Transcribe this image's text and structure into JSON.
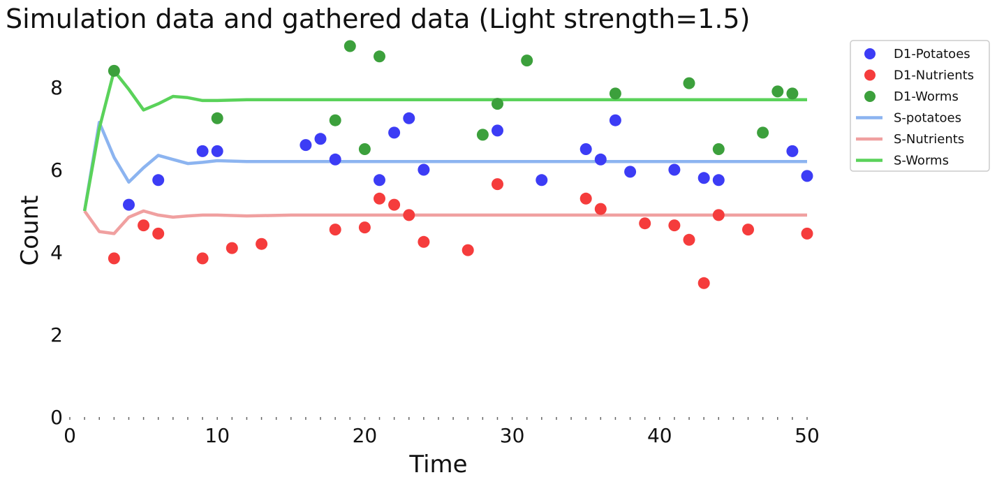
{
  "chart_data": {
    "type": "scatter",
    "title": "Simulation data and gathered data (Light strength=1.5)",
    "xlabel": "Time",
    "ylabel": "Count",
    "xlim": [
      0,
      50
    ],
    "ylim": [
      0,
      9
    ],
    "xticks": [
      "0",
      "10",
      "20",
      "30",
      "40",
      "50"
    ],
    "yticks": [
      "0",
      "2",
      "4",
      "6",
      "8"
    ],
    "grid": false,
    "legend_position": "outside-top-right",
    "series": [
      {
        "name": "D1-Potatoes",
        "kind": "scatter",
        "color": "#3c3cf5",
        "points": [
          [
            4,
            5.15
          ],
          [
            6,
            5.75
          ],
          [
            9,
            6.45
          ],
          [
            10,
            6.45
          ],
          [
            16,
            6.6
          ],
          [
            17,
            6.75
          ],
          [
            18,
            6.25
          ],
          [
            21,
            5.75
          ],
          [
            22,
            6.9
          ],
          [
            23,
            7.25
          ],
          [
            24,
            6.0
          ],
          [
            29,
            6.95
          ],
          [
            32,
            5.75
          ],
          [
            35,
            6.5
          ],
          [
            36,
            6.25
          ],
          [
            37,
            7.2
          ],
          [
            38,
            5.95
          ],
          [
            41,
            6.0
          ],
          [
            43,
            5.8
          ],
          [
            44,
            5.75
          ],
          [
            49,
            6.45
          ],
          [
            50,
            5.85
          ]
        ]
      },
      {
        "name": "D1-Nutrients",
        "kind": "scatter",
        "color": "#f53c3c",
        "points": [
          [
            3,
            3.85
          ],
          [
            5,
            4.65
          ],
          [
            6,
            4.45
          ],
          [
            9,
            3.85
          ],
          [
            11,
            4.1
          ],
          [
            13,
            4.2
          ],
          [
            18,
            4.55
          ],
          [
            20,
            4.6
          ],
          [
            21,
            5.3
          ],
          [
            22,
            5.15
          ],
          [
            23,
            4.9
          ],
          [
            24,
            4.25
          ],
          [
            27,
            4.05
          ],
          [
            29,
            5.65
          ],
          [
            35,
            5.3
          ],
          [
            36,
            5.05
          ],
          [
            39,
            4.7
          ],
          [
            41,
            4.65
          ],
          [
            42,
            4.3
          ],
          [
            43,
            3.25
          ],
          [
            44,
            4.9
          ],
          [
            46,
            4.55
          ],
          [
            50,
            4.45
          ]
        ]
      },
      {
        "name": "D1-Worms",
        "kind": "scatter",
        "color": "#3ca03c",
        "points": [
          [
            3,
            8.4
          ],
          [
            10,
            7.25
          ],
          [
            18,
            7.2
          ],
          [
            19,
            9.0
          ],
          [
            20,
            6.5
          ],
          [
            21,
            8.75
          ],
          [
            28,
            6.85
          ],
          [
            29,
            7.6
          ],
          [
            31,
            8.65
          ],
          [
            37,
            7.85
          ],
          [
            42,
            8.1
          ],
          [
            44,
            6.5
          ],
          [
            47,
            6.9
          ],
          [
            48,
            7.9
          ],
          [
            49,
            7.85
          ]
        ]
      },
      {
        "name": "S-potatoes",
        "kind": "line",
        "color": "#8cb4f0",
        "points": [
          [
            1,
            5.0
          ],
          [
            2,
            7.15
          ],
          [
            3,
            6.3
          ],
          [
            4,
            5.7
          ],
          [
            5,
            6.05
          ],
          [
            6,
            6.35
          ],
          [
            7,
            6.25
          ],
          [
            8,
            6.15
          ],
          [
            9,
            6.18
          ],
          [
            10,
            6.22
          ],
          [
            12,
            6.2
          ],
          [
            15,
            6.2
          ],
          [
            20,
            6.2
          ],
          [
            30,
            6.2
          ],
          [
            40,
            6.2
          ],
          [
            50,
            6.2
          ]
        ]
      },
      {
        "name": "S-Nutrients",
        "kind": "line",
        "color": "#f0a0a0",
        "points": [
          [
            1,
            5.0
          ],
          [
            2,
            4.5
          ],
          [
            3,
            4.45
          ],
          [
            4,
            4.85
          ],
          [
            5,
            5.0
          ],
          [
            6,
            4.9
          ],
          [
            7,
            4.85
          ],
          [
            8,
            4.88
          ],
          [
            9,
            4.9
          ],
          [
            10,
            4.9
          ],
          [
            12,
            4.88
          ],
          [
            15,
            4.9
          ],
          [
            20,
            4.9
          ],
          [
            30,
            4.9
          ],
          [
            40,
            4.9
          ],
          [
            50,
            4.9
          ]
        ]
      },
      {
        "name": "S-Worms",
        "kind": "line",
        "color": "#5ad25a",
        "points": [
          [
            1,
            5.0
          ],
          [
            2,
            7.0
          ],
          [
            3,
            8.4
          ],
          [
            4,
            7.95
          ],
          [
            5,
            7.45
          ],
          [
            6,
            7.6
          ],
          [
            7,
            7.78
          ],
          [
            8,
            7.75
          ],
          [
            9,
            7.68
          ],
          [
            10,
            7.68
          ],
          [
            12,
            7.7
          ],
          [
            15,
            7.7
          ],
          [
            20,
            7.7
          ],
          [
            30,
            7.7
          ],
          [
            40,
            7.7
          ],
          [
            50,
            7.7
          ]
        ]
      }
    ]
  }
}
